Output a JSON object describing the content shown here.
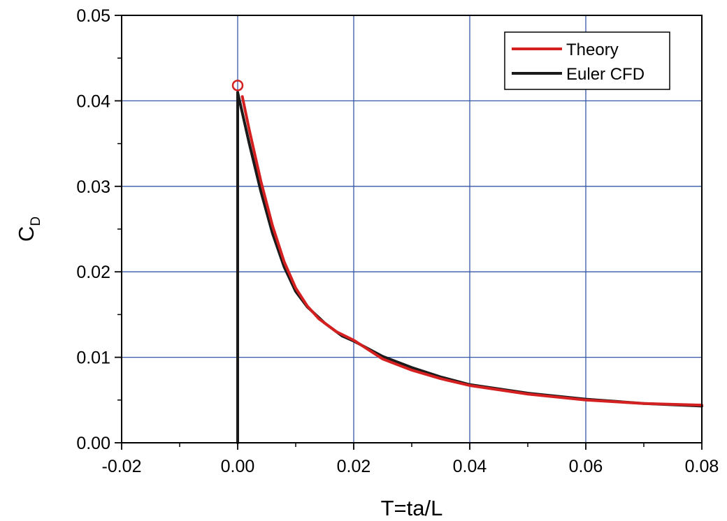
{
  "chart_data": {
    "type": "line",
    "xlabel": "T=ta/L",
    "ylabel": "C",
    "ylabel_subscript": "D",
    "xlim": [
      -0.02,
      0.08
    ],
    "ylim": [
      0.0,
      0.05
    ],
    "x_ticks": [
      "-0.02",
      "0.00",
      "0.02",
      "0.04",
      "0.06",
      "0.08"
    ],
    "y_ticks": [
      "0.00",
      "0.01",
      "0.02",
      "0.03",
      "0.04",
      "0.05"
    ],
    "grid": true,
    "legend_position": "top-right",
    "series": [
      {
        "name": "Theory",
        "color": "#d42020",
        "x": [
          0.0008,
          0.002,
          0.004,
          0.006,
          0.008,
          0.01,
          0.012,
          0.014,
          0.017,
          0.02,
          0.025,
          0.03,
          0.035,
          0.04,
          0.05,
          0.06,
          0.07,
          0.08
        ],
        "y": [
          0.0405,
          0.0366,
          0.0306,
          0.0254,
          0.0212,
          0.0181,
          0.016,
          0.0145,
          0.013,
          0.012,
          0.0098,
          0.0085,
          0.0075,
          0.0067,
          0.0057,
          0.005,
          0.0046,
          0.0044
        ]
      },
      {
        "name": "Euler CFD",
        "color": "#1a1a1a",
        "x": [
          0.0,
          0.0,
          0.0005,
          0.002,
          0.004,
          0.006,
          0.008,
          0.01,
          0.012,
          0.015,
          0.018,
          0.02,
          0.025,
          0.03,
          0.035,
          0.04,
          0.05,
          0.06,
          0.07,
          0.08
        ],
        "y": [
          0.0,
          0.041,
          0.0395,
          0.035,
          0.0294,
          0.0245,
          0.0206,
          0.0177,
          0.0159,
          0.014,
          0.0125,
          0.0119,
          0.0101,
          0.0088,
          0.0077,
          0.0068,
          0.0058,
          0.0051,
          0.0046,
          0.0043
        ]
      }
    ],
    "marker": {
      "x": 0.0,
      "y": 0.0418,
      "shape": "open-circle",
      "color": "#d42020"
    }
  }
}
